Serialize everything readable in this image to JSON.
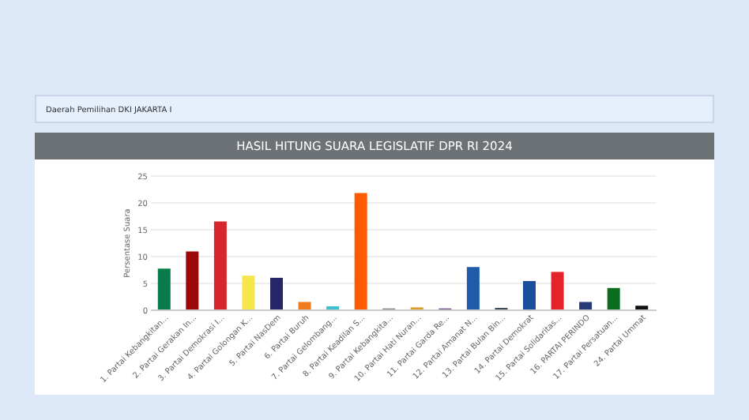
{
  "chart_data": {
    "type": "bar",
    "title": "HASIL HITUNG SUARA LEGISLATIF DPR RI 2024",
    "subtitle": "Daerah Pemilihan DKI JAKARTA I",
    "ylabel": "Persentase Suara",
    "categories": [
      "1. Partai Kebangkitan...",
      "2. Partai Gerakan In...",
      "3. Partai Demokrasi I...",
      "4. Partai Golongan K...",
      "5. Partai NasDem",
      "6. Partai Buruh",
      "7. Partai Gelombang...",
      "8. Partai Keadilan S...",
      "9. Partai Kebangkita...",
      "10. Partai Hati Nuran...",
      "11. Partai Garda Re...",
      "12. Partai Amanat N...",
      "13. Partai Bulan Bin...",
      "14. Partai Demokrat",
      "15. Partai Solidaritas...",
      "16. PARTAI PERINDO",
      "17. Partai Persatuan...",
      "24. Partai Ummat"
    ],
    "values": [
      7.6,
      10.8,
      16.4,
      6.3,
      5.9,
      1.4,
      0.6,
      21.7,
      0.2,
      0.4,
      0.2,
      7.9,
      0.3,
      5.3,
      7.0,
      1.4,
      4.0,
      0.7
    ],
    "colors": [
      "#0a7a4a",
      "#9b0a0a",
      "#d7262e",
      "#f7e649",
      "#232668",
      "#f07a1c",
      "#3bc0d0",
      "#ff5a00",
      "#8a8a8a",
      "#e0a030",
      "#7a5a8a",
      "#1f5ba8",
      "#3a4a5a",
      "#1b4f9c",
      "#e3242b",
      "#273a7a",
      "#0a6e1e",
      "#111111"
    ],
    "ylim": [
      0,
      25
    ],
    "yticks": [
      0,
      5,
      10,
      15,
      20,
      25
    ],
    "grid": "y"
  }
}
